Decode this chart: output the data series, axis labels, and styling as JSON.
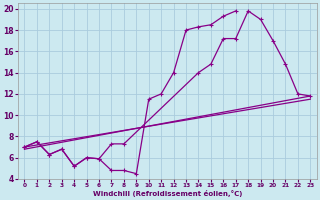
{
  "background_color": "#cce9f0",
  "grid_color": "#aaccdd",
  "line_color": "#880088",
  "xlabel": "Windchill (Refroidissement éolien,°C)",
  "xlim": [
    -0.5,
    23.5
  ],
  "ylim": [
    4,
    20.5
  ],
  "yticks": [
    4,
    6,
    8,
    10,
    12,
    14,
    16,
    18,
    20
  ],
  "xticks": [
    0,
    1,
    2,
    3,
    4,
    5,
    6,
    7,
    8,
    9,
    10,
    11,
    12,
    13,
    14,
    15,
    16,
    17,
    18,
    19,
    20,
    21,
    22,
    23
  ],
  "line1_x": [
    0,
    1,
    2,
    3,
    4,
    5,
    6,
    7,
    8,
    9,
    10,
    11,
    12,
    13,
    14,
    15,
    16,
    17
  ],
  "line1_y": [
    7.0,
    7.5,
    6.3,
    6.8,
    5.2,
    6.0,
    5.9,
    4.8,
    4.8,
    4.5,
    11.5,
    12.0,
    14.0,
    18.0,
    18.3,
    18.5,
    19.3,
    19.8
  ],
  "line2_x": [
    0,
    1,
    2,
    3,
    4,
    5,
    6,
    7,
    8,
    14,
    15,
    16,
    17,
    18,
    19,
    20,
    21,
    22,
    23
  ],
  "line2_y": [
    7.0,
    7.5,
    6.3,
    6.8,
    5.2,
    6.0,
    5.9,
    7.3,
    7.3,
    14.0,
    14.8,
    17.2,
    17.2,
    19.8,
    19.0,
    17.0,
    14.8,
    12.0,
    11.8
  ],
  "line3_x": [
    0,
    23
  ],
  "line3_y": [
    6.8,
    11.8
  ],
  "line4_x": [
    0,
    23
  ],
  "line4_y": [
    7.0,
    11.5
  ]
}
